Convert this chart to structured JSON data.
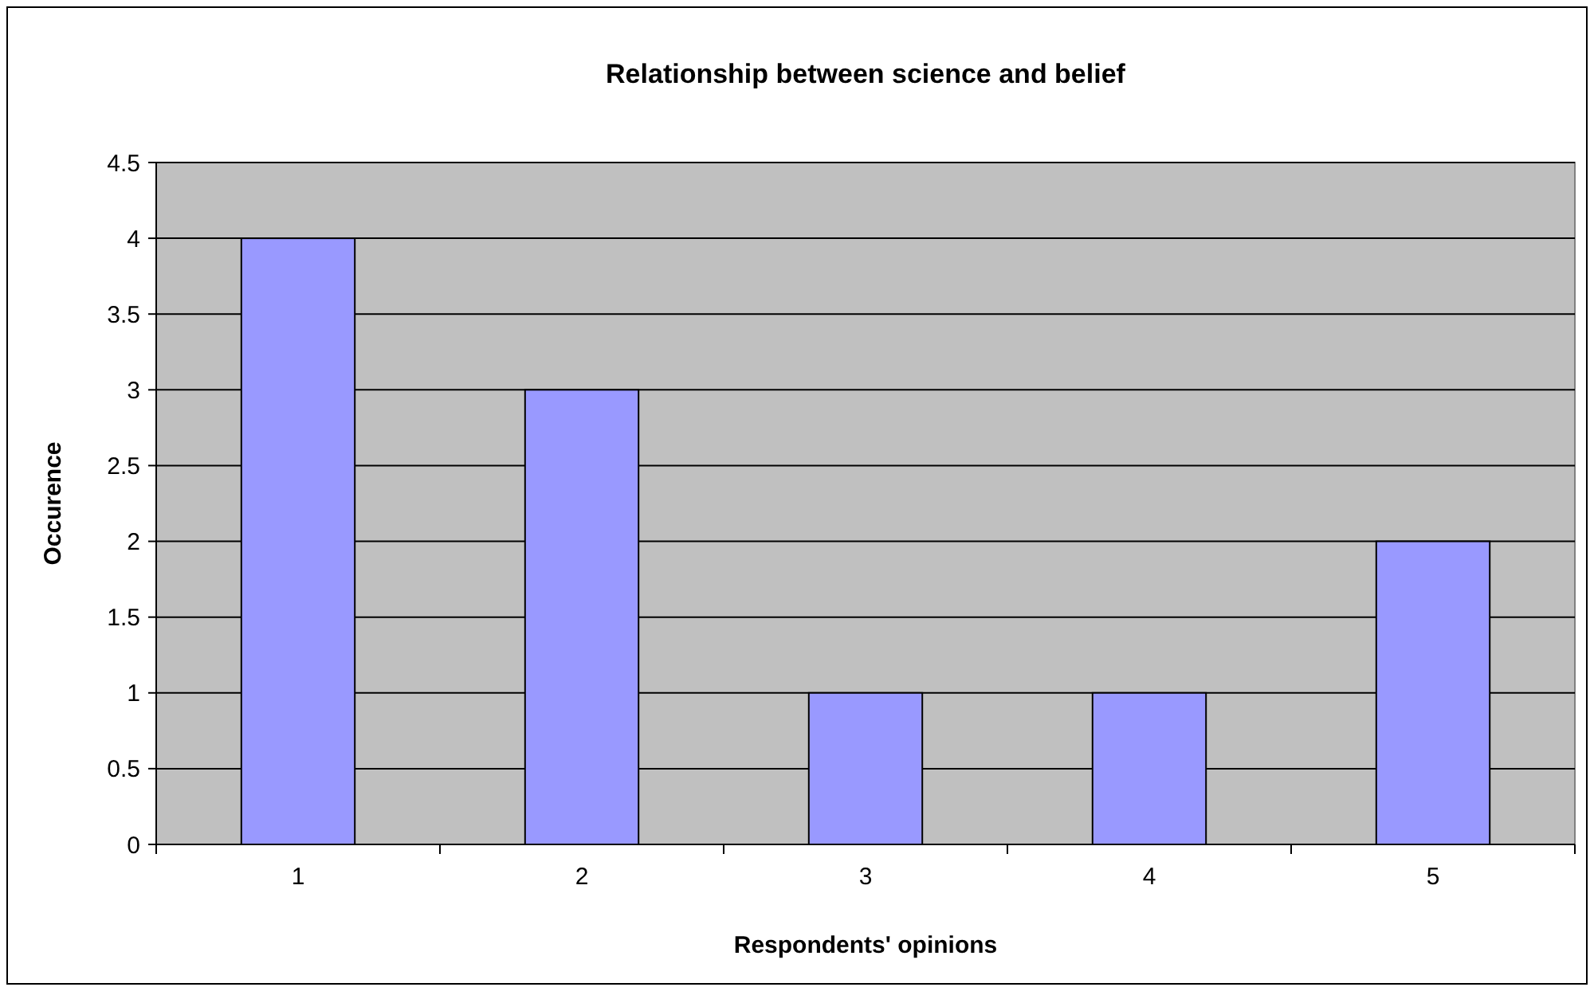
{
  "chart_data": {
    "type": "bar",
    "title": "Relationship between science and belief",
    "xlabel": "Respondents' opinions",
    "ylabel": "Occurence",
    "categories": [
      "1",
      "2",
      "3",
      "4",
      "5"
    ],
    "values": [
      4,
      3,
      1,
      1,
      2
    ],
    "color": "#9999ff",
    "ylim": [
      0,
      4.5
    ],
    "yticks": [
      0,
      0.5,
      1,
      1.5,
      2,
      2.5,
      3,
      3.5,
      4,
      4.5
    ],
    "grid": "y"
  }
}
